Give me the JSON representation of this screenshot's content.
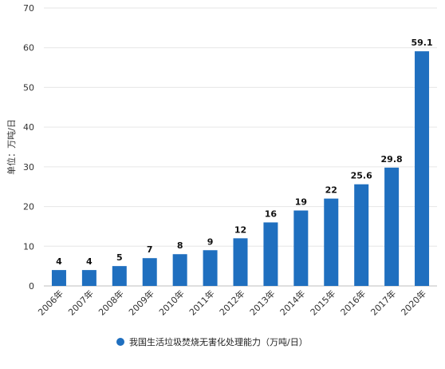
{
  "chart_data": {
    "type": "bar",
    "title": "",
    "xlabel": "",
    "ylabel": "单位：万吨/日",
    "ylim": [
      0,
      70
    ],
    "yticks": [
      0,
      10,
      20,
      30,
      40,
      50,
      60,
      70
    ],
    "grid": "horizontal",
    "legend_position": "bottom",
    "categories": [
      "2006年",
      "2007年",
      "2008年",
      "2009年",
      "2010年",
      "2011年",
      "2012年",
      "2013年",
      "2014年",
      "2015年",
      "2016年",
      "2017年",
      "2020年"
    ],
    "series": [
      {
        "name": "我国生活垃圾焚烧无害化处理能力（万吨/日）",
        "color": "#1f6fbf",
        "values": [
          4,
          4,
          5,
          7,
          8,
          9,
          12,
          16,
          19,
          22,
          25.6,
          29.8,
          59.1
        ],
        "labels": [
          "4",
          "4",
          "5",
          "7",
          "8",
          "9",
          "12",
          "16",
          "19",
          "22",
          "25.6",
          "29.8",
          "59.1"
        ]
      }
    ]
  }
}
